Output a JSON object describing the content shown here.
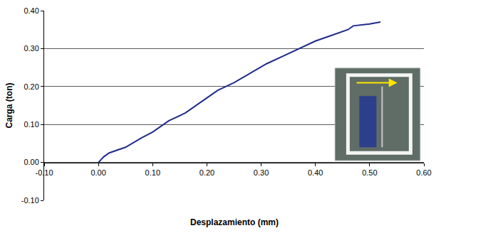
{
  "chart_data": {
    "type": "line",
    "x_label": "Desplazamiento (mm)",
    "y_label": "Carga (ton)",
    "x": [
      0.0,
      0.01,
      0.02,
      0.05,
      0.08,
      0.1,
      0.13,
      0.16,
      0.19,
      0.22,
      0.25,
      0.28,
      0.31,
      0.34,
      0.37,
      0.4,
      0.43,
      0.46,
      0.47,
      0.5,
      0.52
    ],
    "values": [
      0.0,
      0.015,
      0.025,
      0.04,
      0.065,
      0.08,
      0.11,
      0.13,
      0.16,
      0.19,
      0.21,
      0.235,
      0.26,
      0.28,
      0.3,
      0.32,
      0.335,
      0.35,
      0.36,
      0.365,
      0.37
    ],
    "color": "#1f2a8c",
    "line_style": "solid",
    "xlim": [
      -0.1,
      0.6
    ],
    "ylim": [
      -0.1,
      0.4
    ],
    "xticks": [
      {
        "value": -0.1,
        "label": "-0.10"
      },
      {
        "value": 0,
        "label": "0.00"
      },
      {
        "value": 0.1,
        "label": "0.10"
      },
      {
        "value": 0.2,
        "label": "0.20"
      },
      {
        "value": 0.3,
        "label": "0.30"
      },
      {
        "value": 0.4,
        "label": "0.40"
      },
      {
        "value": 0.5,
        "label": "0.50"
      },
      {
        "value": 0.6,
        "label": "0.60"
      }
    ],
    "yticks": [
      {
        "value": -0.1,
        "label": "-0.10"
      },
      {
        "value": 0,
        "label": "0.00"
      },
      {
        "value": 0.1,
        "label": "0.10"
      },
      {
        "value": 0.2,
        "label": "0.20"
      },
      {
        "value": 0.3,
        "label": "0.30"
      },
      {
        "value": 0.4,
        "label": "0.40"
      }
    ],
    "grid": true
  }
}
